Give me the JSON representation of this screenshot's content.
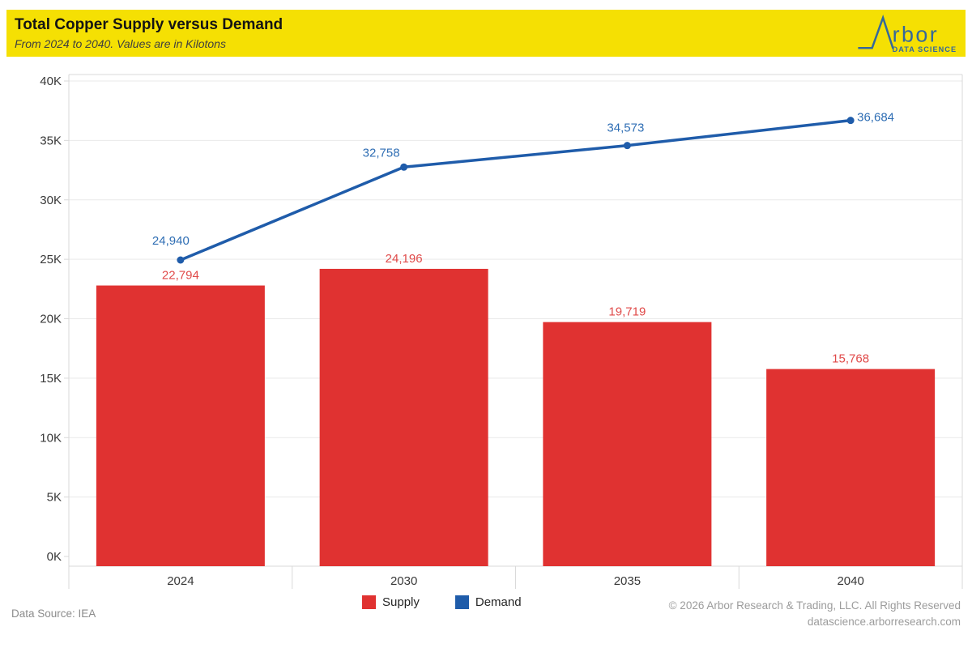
{
  "header": {
    "title": "Total Copper Supply versus Demand",
    "subtitle": "From 2024 to 2040. Values are in Kilotons",
    "banner_color": "#f5e003",
    "logo_text": "rbor",
    "logo_subtext": "DATA SCIENCE",
    "logo_color": "#35689b"
  },
  "chart_data": {
    "type": "bar",
    "title": "Total Copper Supply versus Demand",
    "categories": [
      "2024",
      "2030",
      "2035",
      "2040"
    ],
    "series": [
      {
        "name": "Supply",
        "type": "bar",
        "color": "#e03231",
        "label_color": "#e04a49",
        "values": [
          22794,
          24196,
          19719,
          15768
        ]
      },
      {
        "name": "Demand",
        "type": "line",
        "color": "#1f5caa",
        "label_color": "#2f6eb4",
        "values": [
          24940,
          32758,
          34573,
          36684
        ]
      }
    ],
    "xlabel": "",
    "ylabel": "",
    "ylim": [
      0,
      40000
    ],
    "ytick_step": 5000,
    "ytick_labels": [
      "0K",
      "5K",
      "10K",
      "15K",
      "20K",
      "25K",
      "30K",
      "35K",
      "40K"
    ],
    "grid": true,
    "legend_position": "bottom"
  },
  "legend": {
    "items": [
      {
        "label": "Supply",
        "color": "#e03231"
      },
      {
        "label": "Demand",
        "color": "#1f5caa"
      }
    ]
  },
  "footer": {
    "source": "Data Source: IEA",
    "copyright": "© 2026 Arbor Research & Trading, LLC. All Rights Reserved",
    "website": "datascience.arborresearch.com"
  },
  "colors": {
    "grid_line": "#e9e9e9",
    "axis_frame": "#d9d9d9",
    "axis_text": "#383838"
  }
}
